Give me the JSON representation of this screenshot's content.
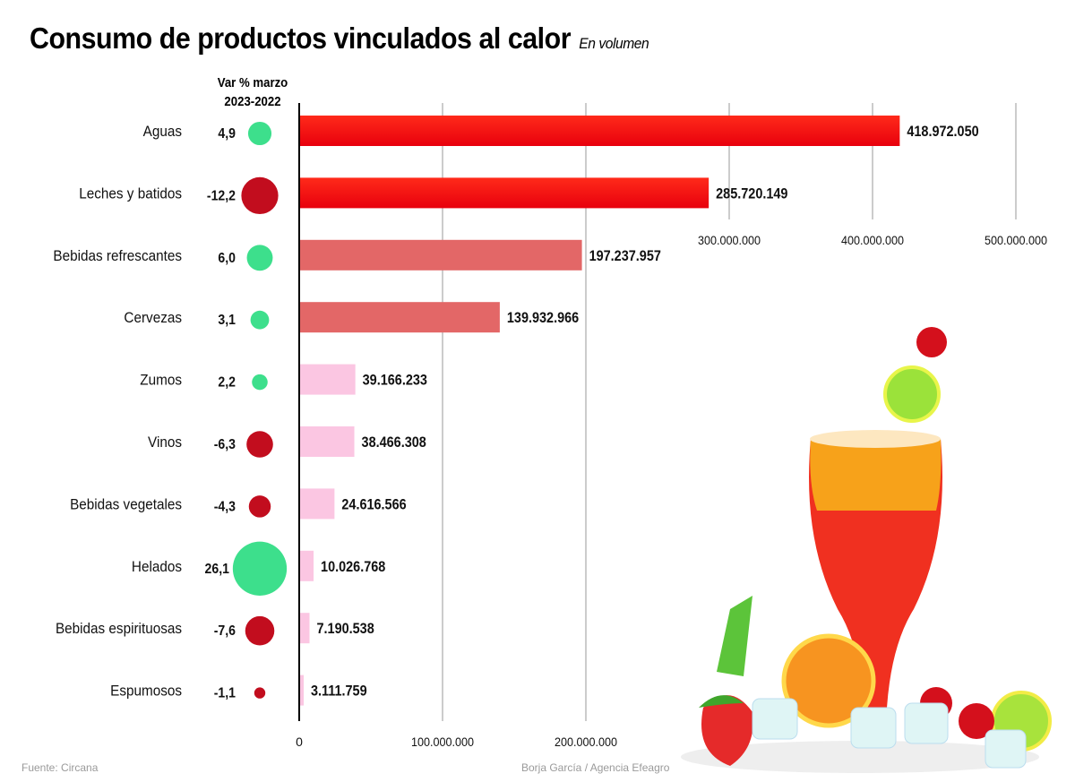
{
  "chart_data": {
    "type": "bar",
    "orientation": "horizontal",
    "title": "Consumo de productos vinculados al calor",
    "subtitle": "En volumen",
    "var_header": "Var % marzo 2023-2022",
    "var_header_lines": [
      "Var % marzo",
      "2023-2022"
    ],
    "categories": [
      "Aguas",
      "Leches y batidos",
      "Bebidas refrescantes",
      "Cervezas",
      "Zumos",
      "Vinos",
      "Bebidas vegetales",
      "Helados",
      "Bebidas espirituosas",
      "Espumosos"
    ],
    "values": [
      418972050,
      285720149,
      197237957,
      139932966,
      39166233,
      38466308,
      24616566,
      10026768,
      7190538,
      3111759
    ],
    "value_labels": [
      "418.972.050",
      "285.720.149",
      "197.237.957",
      "139.932.966",
      "39.166.233",
      "38.466.308",
      "24.616.566",
      "10.026.768",
      "7.190.538",
      "3.111.759"
    ],
    "var_pct": [
      4.9,
      -12.2,
      6.0,
      3.1,
      2.2,
      -6.3,
      -4.3,
      26.1,
      -7.6,
      -1.1
    ],
    "var_labels": [
      "4,9",
      "-12,2",
      "6,0",
      "3,1",
      "2,2",
      "-6,3",
      "-4,3",
      "26,1",
      "-7,6",
      "-1,1"
    ],
    "xlim": [
      0,
      500000000
    ],
    "xticks": [
      0,
      100000000,
      200000000,
      300000000,
      400000000,
      500000000
    ],
    "xtick_labels": [
      "0",
      "100.000.000",
      "200.000.000",
      "300.000.000",
      "400.000.000",
      "500.000.000"
    ],
    "grid": true,
    "colors": {
      "positive": "#3ddf8c",
      "negative": "#c20d1e",
      "bar_top": "#e8000d",
      "bar_mid": "#e36767",
      "bar_low": "#fbc6e2"
    }
  },
  "footer": {
    "source": "Fuente: Circana",
    "credit": "Borja García / Agencia Efeagro"
  }
}
